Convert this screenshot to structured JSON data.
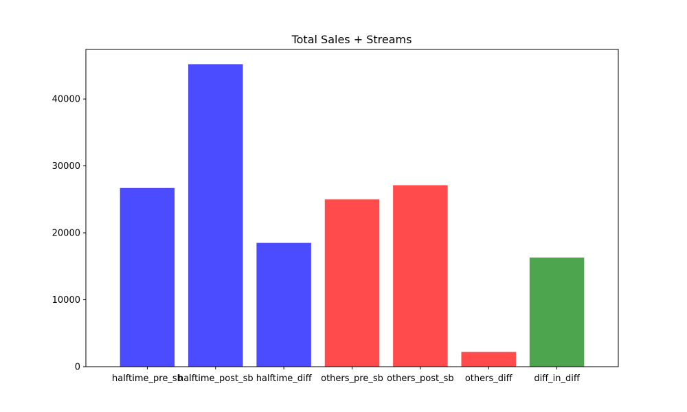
{
  "chart_data": {
    "type": "bar",
    "title": "Total Sales + Streams",
    "xlabel": "",
    "ylabel": "",
    "categories": [
      "halftime_pre_sb",
      "halftime_post_sb",
      "halftime_diff",
      "others_pre_sb",
      "others_post_sb",
      "others_diff",
      "diff_in_diff"
    ],
    "values": [
      26700,
      45200,
      18500,
      25000,
      27100,
      2200,
      16300
    ],
    "bar_colors": [
      "#4b4bff",
      "#4b4bff",
      "#4b4bff",
      "#ff4b4b",
      "#ff4b4b",
      "#ff4b4b",
      "#4da64d"
    ],
    "ylim": [
      0,
      47400
    ],
    "yticks": [
      0,
      10000,
      20000,
      30000,
      40000
    ],
    "grid": false,
    "legend": "none"
  }
}
